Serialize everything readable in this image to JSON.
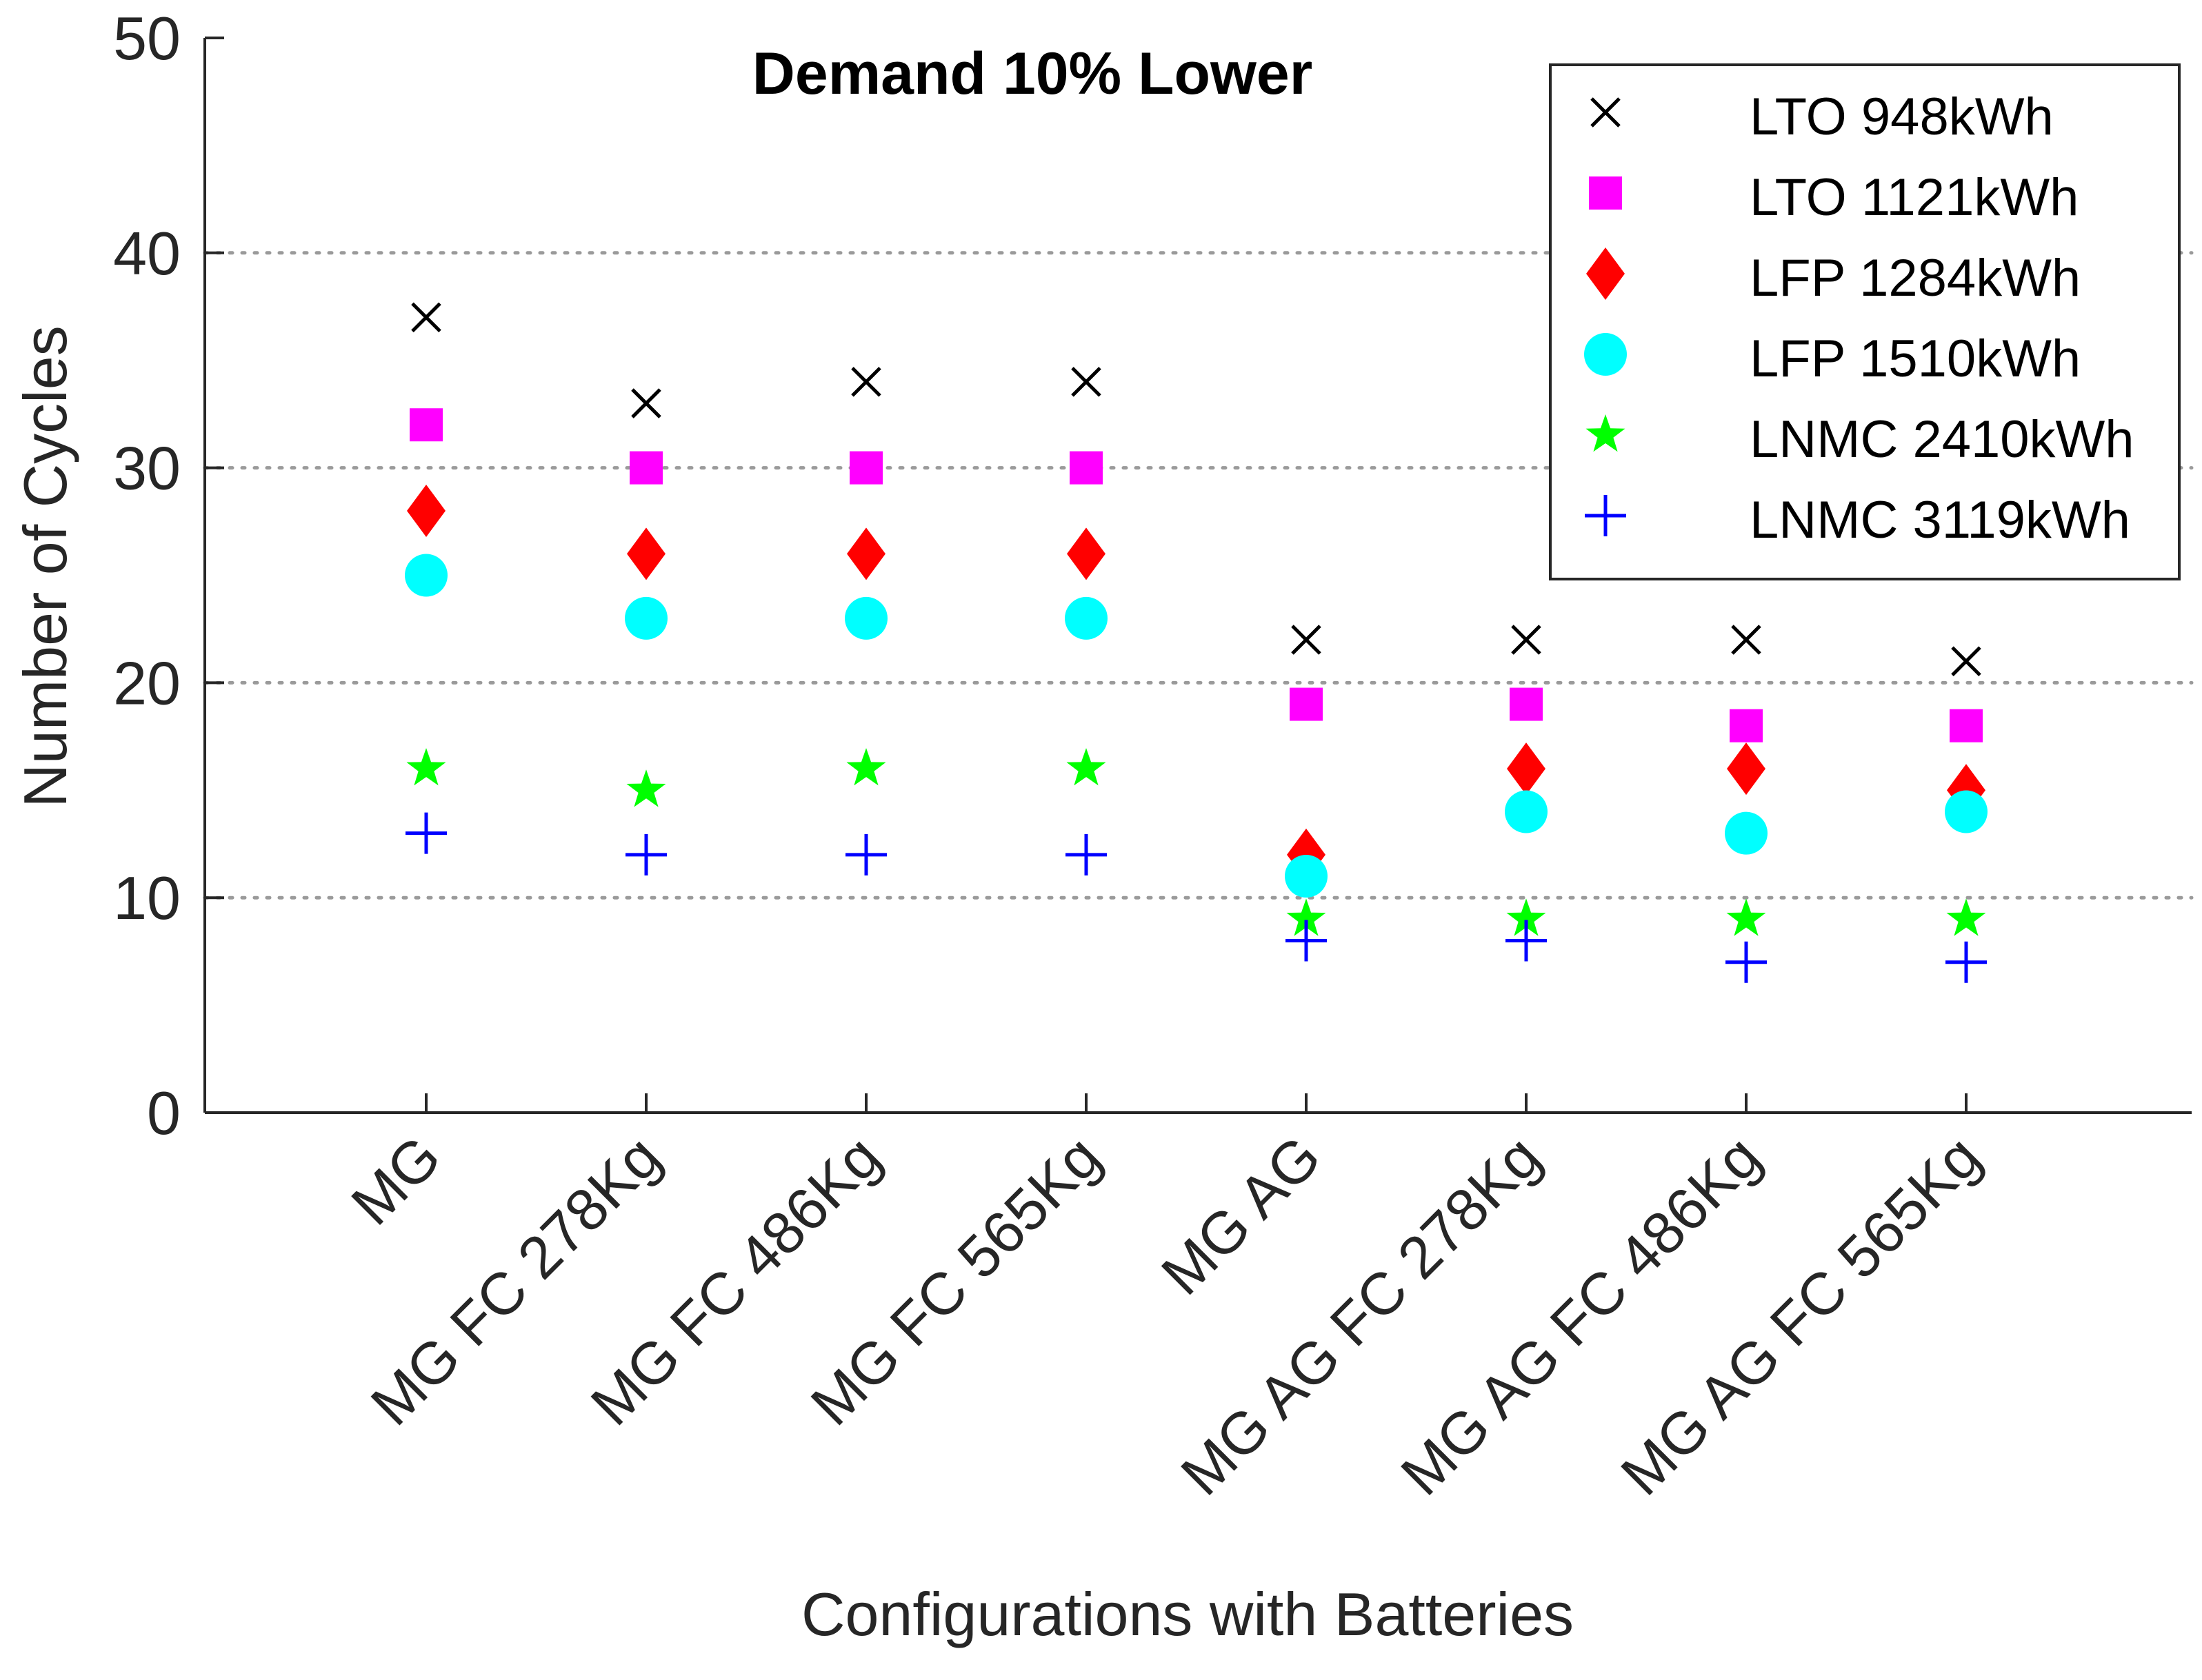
{
  "chart_data": {
    "type": "scatter",
    "title": "Demand 10% Lower",
    "xlabel": "Configurations with Batteries",
    "ylabel": "Number of Cycles",
    "ylim": [
      0,
      50
    ],
    "yticks": [
      0,
      10,
      20,
      30,
      40,
      50
    ],
    "grid": "horizontal dotted",
    "legend_position": "top-right",
    "categories": [
      "MG",
      "MG FC 278Kg",
      "MG FC 486Kg",
      "MG FC 565Kg",
      "MG AG",
      "MG AG FC 278Kg",
      "MG AG FC 486Kg",
      "MG AG FC 565Kg"
    ],
    "series": [
      {
        "name": "LTO 948kWh",
        "marker": "x",
        "color": "#000000",
        "values": [
          37,
          33,
          34,
          34,
          22,
          22,
          22,
          21
        ]
      },
      {
        "name": "LTO 1121kWh",
        "marker": "square",
        "color": "#ff00ff",
        "values": [
          32,
          30,
          30,
          30,
          19,
          19,
          18,
          18
        ]
      },
      {
        "name": "LFP 1284kWh",
        "marker": "diamond",
        "color": "#ff0000",
        "values": [
          28,
          26,
          26,
          26,
          12,
          16,
          16,
          15
        ]
      },
      {
        "name": "LFP 1510kWh",
        "marker": "circle",
        "color": "#00ffff",
        "values": [
          25,
          23,
          23,
          23,
          11,
          14,
          13,
          14
        ]
      },
      {
        "name": "LNMC 2410kWh",
        "marker": "star",
        "color": "#00ff00",
        "values": [
          16,
          15,
          16,
          16,
          9,
          9,
          9,
          9
        ]
      },
      {
        "name": "LNMC 3119kWh",
        "marker": "plus",
        "color": "#0000ff",
        "values": [
          13,
          12,
          12,
          12,
          8,
          8,
          7,
          7
        ]
      }
    ]
  }
}
